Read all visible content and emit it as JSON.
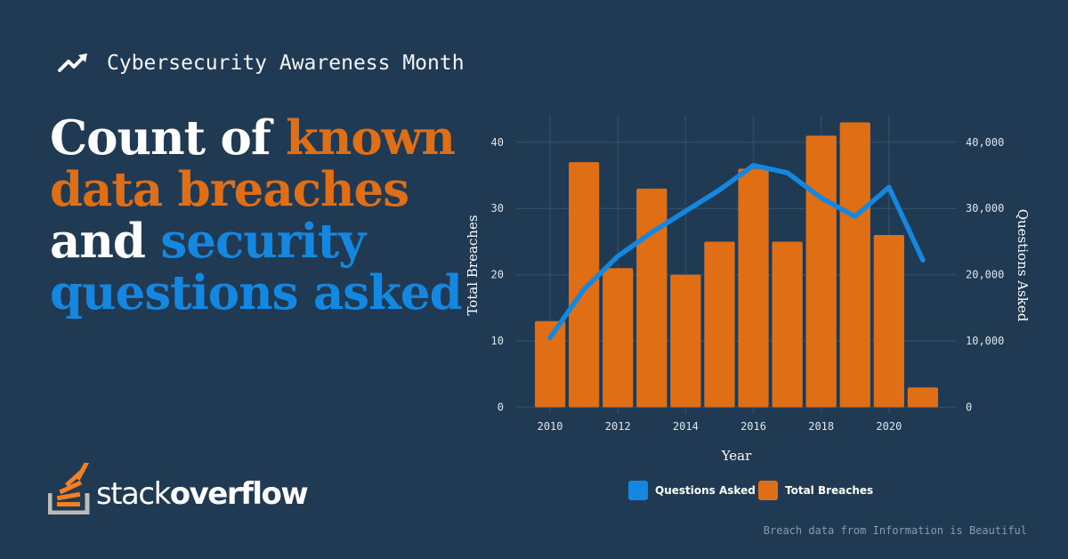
{
  "eyebrow": {
    "icon": "trending-up-icon",
    "text": "Cybersecurity Awareness Month"
  },
  "headline": {
    "parts": [
      {
        "text": "Count of ",
        "color": "white"
      },
      {
        "text": "known data breaches",
        "color": "orange"
      },
      {
        "text": " and ",
        "color": "white"
      },
      {
        "text": "security questions asked",
        "color": "blue"
      }
    ]
  },
  "logo": {
    "icon": "stack-overflow-logo-icon",
    "prefix": "stack",
    "suffix": "overflow"
  },
  "source": "Breach data from Information is Beautiful",
  "colors": {
    "background": "#1f3a52",
    "orange": "#e06e15",
    "blue": "#1488e0",
    "grid": "#2c4c68"
  },
  "chart_data": {
    "type": "bar",
    "x": [
      2010,
      2011,
      2012,
      2013,
      2014,
      2015,
      2016,
      2017,
      2018,
      2019,
      2020,
      2021
    ],
    "xlabel": "Year",
    "x_ticks": [
      "2010",
      "2012",
      "2014",
      "2016",
      "2018",
      "2020"
    ],
    "xlim": [
      2009,
      2022
    ],
    "series": [
      {
        "name": "Total Breaches",
        "type": "bar",
        "axis": "left",
        "color": "#e06e15",
        "values": [
          13,
          37,
          21,
          33,
          20,
          25,
          36,
          25,
          41,
          43,
          26,
          3
        ]
      },
      {
        "name": "Questions Asked",
        "type": "line",
        "axis": "right",
        "color": "#1488e0",
        "values": [
          10500,
          17800,
          22800,
          26400,
          29600,
          32800,
          36500,
          35400,
          31600,
          28800,
          33200,
          22200
        ]
      }
    ],
    "y_left": {
      "label": "Total Breaches",
      "ticks": [
        "0",
        "10",
        "20",
        "30",
        "40"
      ],
      "lim": [
        -1,
        44
      ]
    },
    "y_right": {
      "label": "Questions Asked",
      "ticks": [
        "0",
        "10,000",
        "20,000",
        "30,000",
        "40,000"
      ],
      "lim": [
        -1000,
        44000
      ]
    },
    "legend": {
      "placement": "bottom",
      "entries": [
        "Questions Asked",
        "Total Breaches"
      ]
    },
    "grid": true
  }
}
